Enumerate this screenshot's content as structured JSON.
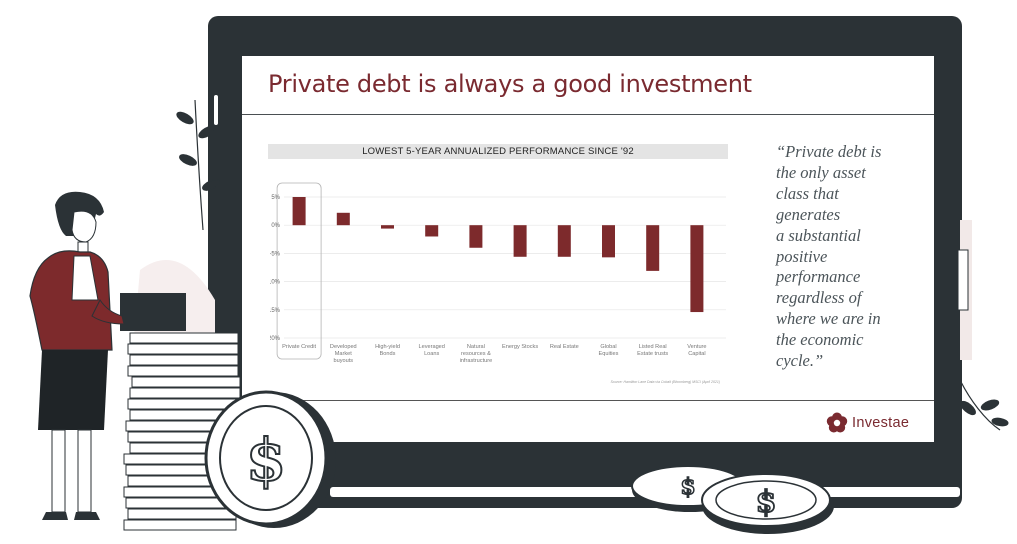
{
  "slide": {
    "title": "Private debt is always a good investment",
    "quote": "“Private debt is\nthe only asset\nclass that\ngenerates\na  substantial\npositive\nperformance\nregardless of\nwhere we are in\nthe economic\ncycle.”",
    "source_note": "Source: Hamilton Lane Data via Cobalt (Bloomberg) MSCI (April 2021)",
    "logo_text": "Investae"
  },
  "colors": {
    "accent": "#7a2a30",
    "bar": "#7d2a2c",
    "monitor": "#2b3236",
    "text_gray": "#4b5459"
  },
  "icons": [
    "dollar-coin-icon",
    "investae-logo-icon"
  ],
  "chart_data": {
    "type": "bar",
    "title": "LOWEST 5-YEAR ANNUALIZED PERFORMANCE SINCE '92",
    "xlabel": "",
    "ylabel": "",
    "ylim": [
      -20,
      5
    ],
    "yticks": [
      5,
      0,
      -5,
      -10,
      -15,
      -20
    ],
    "ytick_labels": [
      "5%",
      "0%",
      "-5%",
      "-10%",
      "-15%",
      "-20%"
    ],
    "grid": true,
    "legend": "none",
    "highlighted_category": "Private Credit",
    "categories": [
      "Private Credit",
      "Developed Market buyouts",
      "High-yield Bonds",
      "Leveraged Loans",
      "Natural resources & infrastructure",
      "Energy Stocks",
      "Real Estate",
      "Global Equities",
      "Listed Real Estate trusts",
      "Venture Capital"
    ],
    "category_label_lines": [
      [
        "Private Credit"
      ],
      [
        "Developed",
        "Market",
        "buyouts"
      ],
      [
        "High-yield",
        "Bonds"
      ],
      [
        "Leveraged",
        "Loans"
      ],
      [
        "Natural",
        "resources &",
        "infrastructure"
      ],
      [
        "Energy Stocks"
      ],
      [
        "Real Estate"
      ],
      [
        "Global",
        "Equities"
      ],
      [
        "Listed Real",
        "Estate trusts"
      ],
      [
        "Venture",
        "Capital"
      ]
    ],
    "values": [
      5.0,
      2.2,
      -0.6,
      -2.0,
      -4.0,
      -5.6,
      -5.6,
      -5.7,
      -8.1,
      -15.4
    ]
  }
}
